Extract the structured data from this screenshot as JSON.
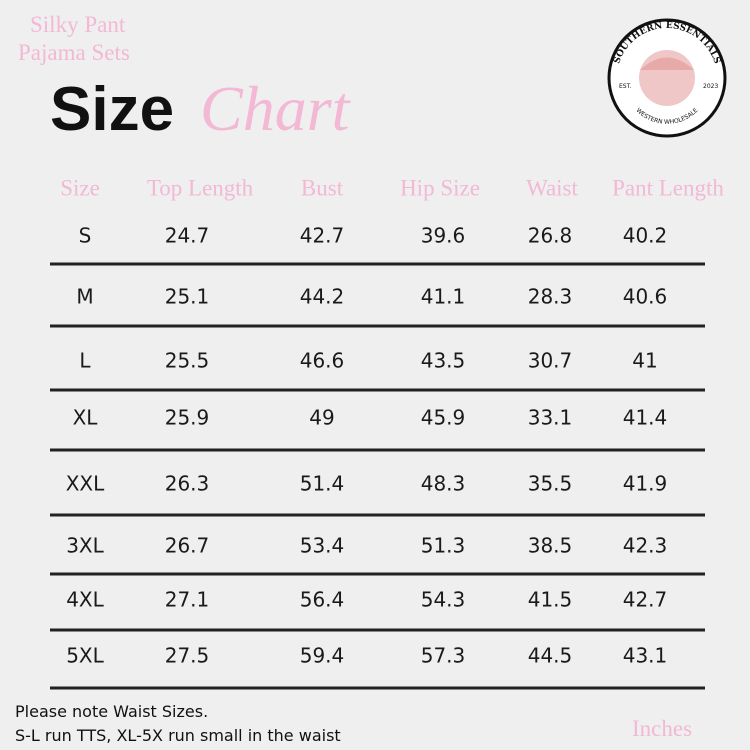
{
  "header": {
    "subtitle_lines": [
      "Silky Pant",
      "Pajama Sets"
    ],
    "title_bold": "Size",
    "title_script": "Chart"
  },
  "logo": {
    "arc_top": "SOUTHERN ESSENTIALS",
    "left": "EST.",
    "right": "2023",
    "arc_bottom": "WESTERN WHOLESALE"
  },
  "table": {
    "columns": [
      "Size",
      "Top Length",
      "Bust",
      "Hip Size",
      "Waist",
      "Pant Length"
    ],
    "rows": [
      [
        "S",
        24.7,
        42.7,
        39.6,
        26.8,
        40.2
      ],
      [
        "M",
        25.1,
        44.2,
        41.1,
        28.3,
        40.6
      ],
      [
        "L",
        25.5,
        46.6,
        43.5,
        30.7,
        41
      ],
      [
        "XL",
        25.9,
        49,
        45.9,
        33.1,
        41.4
      ],
      [
        "XXL",
        26.3,
        51.4,
        48.3,
        35.5,
        41.9
      ],
      [
        "3XL",
        26.7,
        53.4,
        51.3,
        38.5,
        42.3
      ],
      [
        "4XL",
        27.1,
        56.4,
        54.3,
        41.5,
        42.7
      ],
      [
        "5XL",
        27.5,
        59.4,
        57.3,
        44.5,
        43.1
      ]
    ]
  },
  "footer": {
    "notes": [
      "Please note Waist Sizes.",
      "S-L run TTS, XL-5X run small in the waist"
    ],
    "unit": "Inches"
  }
}
